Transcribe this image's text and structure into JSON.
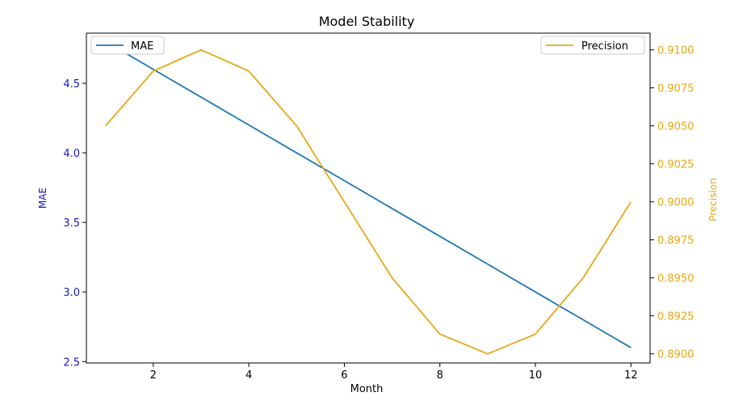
{
  "chart_data": {
    "type": "line",
    "title": "Model Stability",
    "xlabel": "Month",
    "ylabel_left": "MAE",
    "ylabel_right": "Precision",
    "x": [
      1,
      2,
      3,
      4,
      5,
      6,
      7,
      8,
      9,
      10,
      11,
      12
    ],
    "xlim": [
      0.6,
      12.4
    ],
    "xticks": [
      2,
      4,
      6,
      8,
      10,
      12
    ],
    "ylim_left": [
      2.49,
      4.86
    ],
    "yticks_left": [
      "2.5",
      "3.0",
      "3.5",
      "4.0",
      "4.5"
    ],
    "ylim_right": [
      0.8894,
      0.9111
    ],
    "yticks_right": [
      "0.8900",
      "0.8925",
      "0.8950",
      "0.8975",
      "0.9000",
      "0.9025",
      "0.9050",
      "0.9075",
      "0.9100"
    ],
    "grid": false,
    "series": [
      {
        "name": "MAE",
        "axis": "left",
        "color": "#1f77b4",
        "values": [
          4.8,
          4.6,
          4.4,
          4.2,
          4.0,
          3.8,
          3.6,
          3.4,
          3.2,
          3.0,
          2.8,
          2.6
        ],
        "legend_position": "top-left"
      },
      {
        "name": "Precision",
        "axis": "right",
        "color": "#e6a817",
        "values": [
          0.905,
          0.9086,
          0.91,
          0.9086,
          0.905,
          0.9,
          0.895,
          0.8913,
          0.89,
          0.8913,
          0.895,
          0.9
        ],
        "legend_position": "top-right"
      }
    ],
    "left_axis_color": "#1a1ab8",
    "right_axis_color": "#e6a817"
  }
}
